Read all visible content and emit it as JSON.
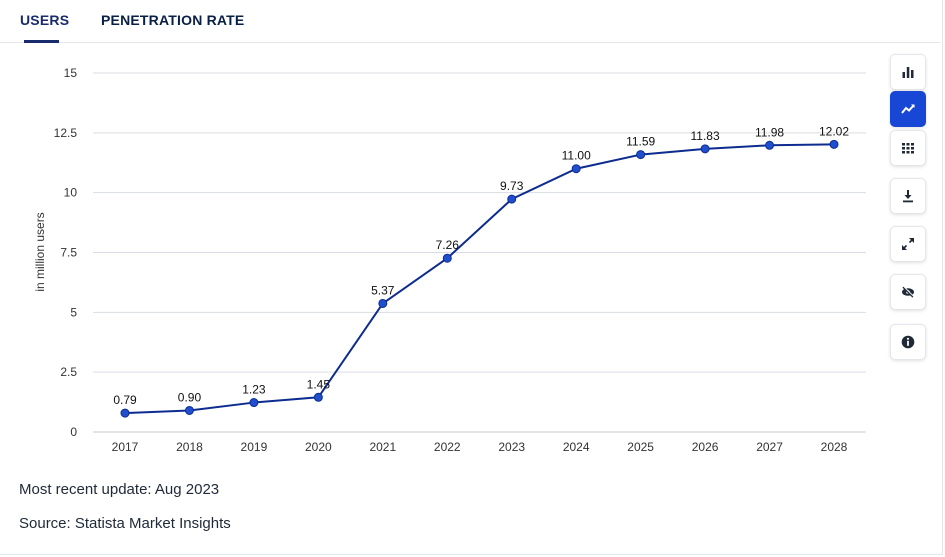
{
  "tabs": {
    "users": "USERS",
    "penetration": "PENETRATION RATE"
  },
  "footer": {
    "update": "Most recent update: Aug 2023",
    "source": "Source: Statista Market Insights"
  },
  "toolbar": {
    "icons": [
      "bar-chart-icon",
      "line-chart-icon",
      "table-icon",
      "download-icon",
      "fullscreen-icon",
      "hide-icon",
      "info-icon"
    ],
    "active": "line-chart-icon"
  },
  "colors": {
    "line": "#0d2c8f",
    "point": "#1f4fcf",
    "accent": "#1847d6",
    "tab": "#1a2b6d",
    "grid": "#d9dde3"
  },
  "chart_data": {
    "type": "line",
    "x": [
      "2017",
      "2018",
      "2019",
      "2020",
      "2021",
      "2022",
      "2023",
      "2024",
      "2025",
      "2026",
      "2027",
      "2028"
    ],
    "series": [
      {
        "values": [
          0.79,
          0.9,
          1.23,
          1.45,
          5.37,
          7.26,
          9.73,
          11.0,
          11.59,
          11.83,
          11.98,
          12.02
        ]
      }
    ],
    "data_labels": [
      "0.79",
      "0.90",
      "1.23",
      "1.45",
      "5.37",
      "7.26",
      "9.73",
      "11.00",
      "11.59",
      "11.83",
      "11.98",
      "12.02"
    ],
    "ylabel": "in million users",
    "yticks": [
      "0",
      "2.5",
      "5",
      "7.5",
      "10",
      "12.5",
      "15"
    ],
    "ylim": [
      0,
      15
    ],
    "grid": true
  }
}
